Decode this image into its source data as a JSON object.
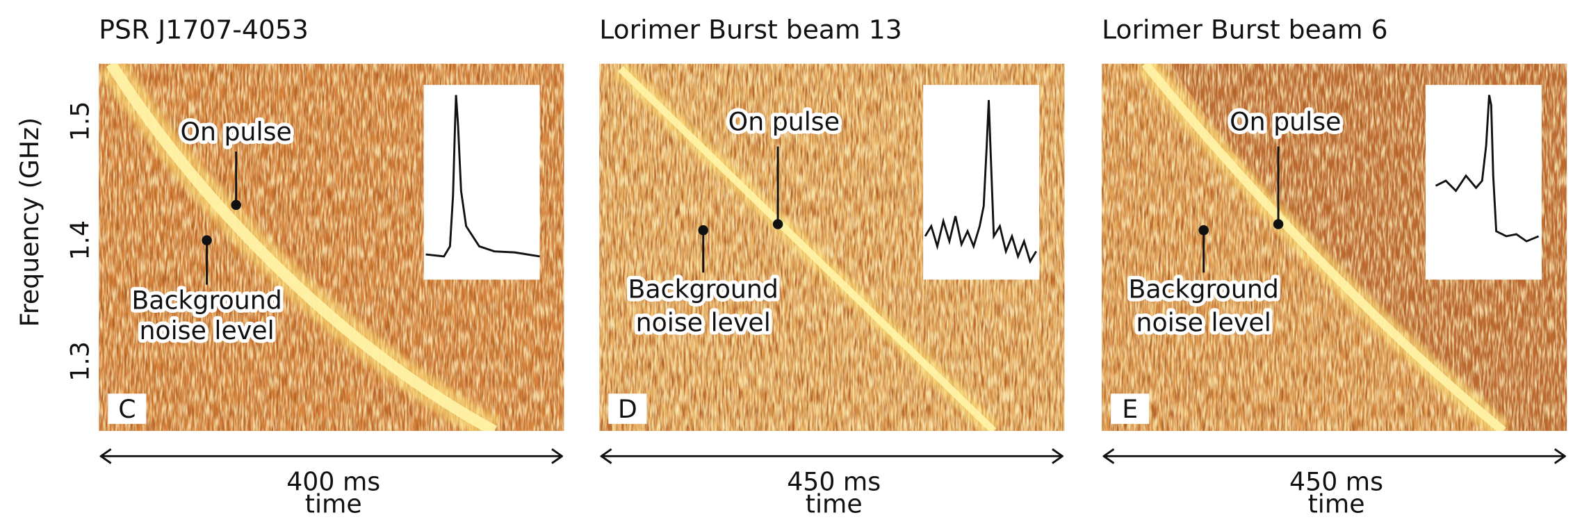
{
  "figure": {
    "y_axis": {
      "label": "Frequency (GHz)",
      "ticks": [
        "1.5",
        "1.4",
        "1.3"
      ]
    },
    "panels": [
      {
        "title": "PSR J1707-4053",
        "letter": "C",
        "on_pulse": "On pulse",
        "background": [
          "Background",
          "noise level"
        ],
        "duration": "400 ms",
        "x_label": "time"
      },
      {
        "title": "Lorimer Burst beam 13",
        "letter": "D",
        "on_pulse": "On pulse",
        "background": [
          "Background",
          "noise level"
        ],
        "duration": "450 ms",
        "x_label": "time"
      },
      {
        "title": "Lorimer Burst beam 6",
        "letter": "E",
        "on_pulse": "On pulse",
        "background": [
          "Background",
          "noise level"
        ],
        "duration": "450 ms",
        "x_label": "time"
      }
    ]
  }
}
